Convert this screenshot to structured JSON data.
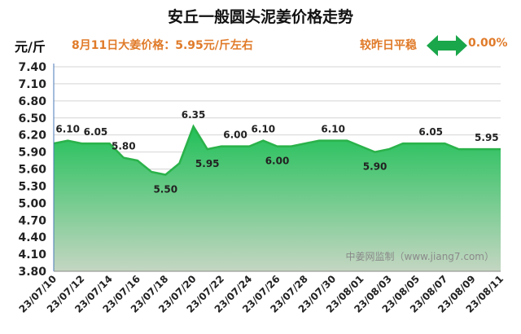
{
  "header": {
    "title": "安丘一般圆头泥姜价格走势",
    "unit": "元/斤",
    "price_note": "8月11日大姜价格：5.95元/斤左右",
    "compare_label": "较昨日平稳",
    "compare_value": "0.00%"
  },
  "watermark": "中姜网监制（www.jiang7.com）",
  "colors": {
    "line": "#2ab24a",
    "fill_top": "#20c058",
    "fill_bottom": "#c4d6c2",
    "accent": "#e07b2a",
    "arrow": "#1aa64a"
  },
  "chart_data": {
    "type": "area",
    "title": "安丘一般圆头泥姜价格走势",
    "ylabel": "元/斤",
    "ylim": [
      3.8,
      7.4
    ],
    "yticks": [
      "3.80",
      "4.10",
      "4.40",
      "4.70",
      "5.00",
      "5.30",
      "5.60",
      "5.90",
      "6.20",
      "6.50",
      "6.80",
      "7.10",
      "7.40"
    ],
    "grid": true,
    "x": [
      "23/07/10",
      "23/07/11",
      "23/07/12",
      "23/07/13",
      "23/07/14",
      "23/07/15",
      "23/07/16",
      "23/07/17",
      "23/07/18",
      "23/07/19",
      "23/07/20",
      "23/07/21",
      "23/07/22",
      "23/07/23",
      "23/07/24",
      "23/07/25",
      "23/07/26",
      "23/07/27",
      "23/07/28",
      "23/07/29",
      "23/07/30",
      "23/07/31",
      "23/08/01",
      "23/08/02",
      "23/08/03",
      "23/08/04",
      "23/08/05",
      "23/08/06",
      "23/08/07",
      "23/08/08",
      "23/08/09",
      "23/08/10",
      "23/08/11"
    ],
    "xtick_labels": [
      "23/07/10",
      "23/07/12",
      "23/07/14",
      "23/07/16",
      "23/07/18",
      "23/07/20",
      "23/07/22",
      "23/07/24",
      "23/07/26",
      "23/07/28",
      "23/07/30",
      "23/08/01",
      "23/08/03",
      "23/08/05",
      "23/08/07",
      "23/08/09",
      "23/08/11"
    ],
    "values": [
      6.05,
      6.1,
      6.05,
      6.05,
      6.05,
      5.8,
      5.75,
      5.55,
      5.5,
      5.7,
      6.35,
      5.95,
      6.0,
      6.0,
      6.0,
      6.1,
      6.0,
      6.0,
      6.05,
      6.1,
      6.1,
      6.1,
      6.0,
      5.9,
      5.95,
      6.05,
      6.05,
      6.05,
      6.05,
      5.95,
      5.95,
      5.95,
      5.95
    ],
    "data_labels": [
      {
        "x": "23/07/11",
        "label": "6.10"
      },
      {
        "x": "23/07/13",
        "label": "6.05"
      },
      {
        "x": "23/07/15",
        "label": "5.80"
      },
      {
        "x": "23/07/18",
        "label": "5.50"
      },
      {
        "x": "23/07/20",
        "label": "6.35"
      },
      {
        "x": "23/07/21",
        "label": "5.95"
      },
      {
        "x": "23/07/23",
        "label": "6.00"
      },
      {
        "x": "23/07/25",
        "label": "6.10"
      },
      {
        "x": "23/07/26",
        "label": "6.00"
      },
      {
        "x": "23/07/30",
        "label": "6.10"
      },
      {
        "x": "23/08/02",
        "label": "5.90"
      },
      {
        "x": "23/08/06",
        "label": "6.05"
      },
      {
        "x": "23/08/10",
        "label": "5.95"
      }
    ]
  }
}
